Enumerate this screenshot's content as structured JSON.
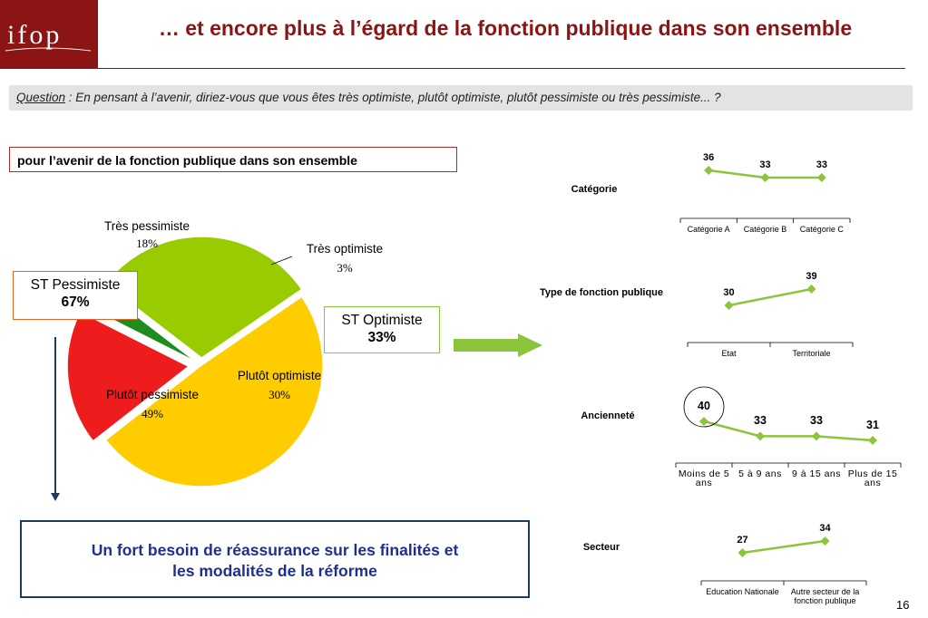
{
  "header": {
    "logo_text": "ifop",
    "title": "… et encore plus à l’égard de la fonction publique dans son ensemble"
  },
  "question": {
    "label": "Question",
    "text": " : En pensant à l’avenir, diriez-vous que vous êtes très optimiste, plutôt optimiste, plutôt pessimiste ou très pessimiste... ?"
  },
  "subtitle": "pour l’avenir de la fonction publique dans son ensemble",
  "st_pessimiste": {
    "label": "ST Pessimiste",
    "value": "67%"
  },
  "st_optimiste": {
    "label": "ST Optimiste",
    "value": "33%"
  },
  "conclusion": {
    "line1": "Un fort besoin de réassurance sur les finalités et",
    "line2": "les modalités de la réforme"
  },
  "page_number": "16",
  "colors": {
    "brand": "#8b1414",
    "tres_pessimiste": "#ee1c1c",
    "tres_optimiste": "#1e8c1e",
    "plutot_optimiste": "#99cc00",
    "plutot_pessimiste": "#ffcc00",
    "line": "#8cc43c"
  },
  "chart_data": [
    {
      "type": "pie",
      "title": "pour l’avenir de la fonction publique dans son ensemble",
      "slices": [
        {
          "name": "Très pessimiste",
          "value": 18,
          "label": "18%"
        },
        {
          "name": "Très optimiste",
          "value": 3,
          "label": "3%"
        },
        {
          "name": "Plutôt optimiste",
          "value": 30,
          "label": "30%"
        },
        {
          "name": "Plutôt pessimiste",
          "value": 49,
          "label": "49%"
        }
      ]
    },
    {
      "type": "line",
      "title": "Catégorie",
      "categories": [
        "Catégorie A",
        "Catégorie B",
        "Catégorie C"
      ],
      "values": [
        36,
        33,
        33
      ]
    },
    {
      "type": "line",
      "title": "Type de fonction publique",
      "categories": [
        "Etat",
        "Territoriale"
      ],
      "values": [
        30,
        39
      ]
    },
    {
      "type": "line",
      "title": "Ancienneté",
      "categories": [
        "Moins de 5 ans",
        "5 à 9 ans",
        "9 à 15 ans",
        "Plus de 15 ans"
      ],
      "values": [
        40,
        33,
        33,
        31
      ],
      "highlighted": "Moins de 5 ans"
    },
    {
      "type": "line",
      "title": "Secteur",
      "categories": [
        "Education Nationale",
        "Autre secteur de la fonction publique"
      ],
      "values": [
        27,
        34
      ]
    }
  ]
}
